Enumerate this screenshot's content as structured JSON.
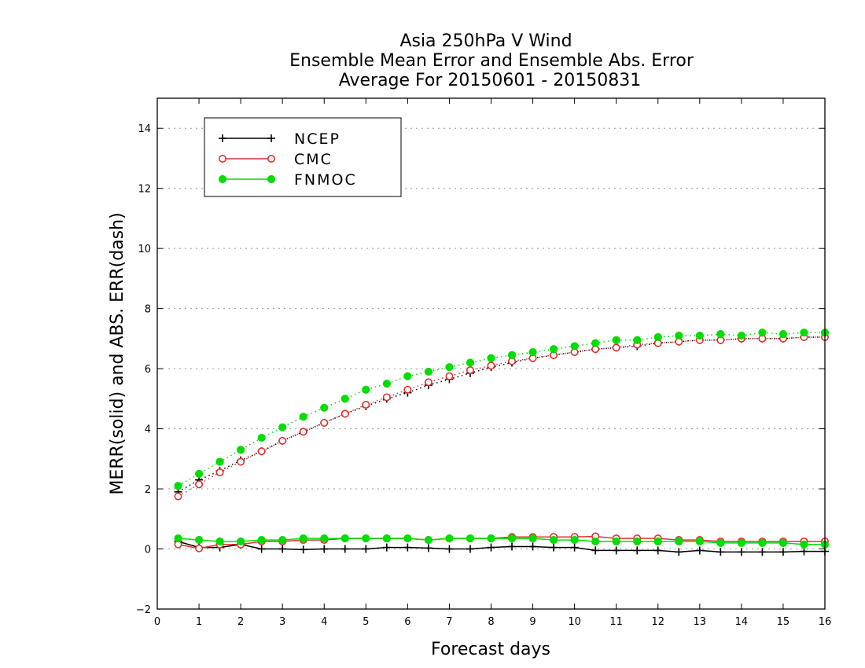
{
  "chart_data": {
    "type": "line",
    "title": [
      "Asia 250hPa V Wind",
      "Ensemble Mean Error and Ensemble Abs. Error",
      "Average For 20150601 - 20150831"
    ],
    "xlabel": "Forecast days",
    "ylabel": "MERR(solid) and ABS. ERR(dash)",
    "xlim": [
      0,
      16
    ],
    "ylim": [
      -2,
      15
    ],
    "xticks": [
      0,
      1,
      2,
      3,
      4,
      5,
      6,
      7,
      8,
      9,
      10,
      11,
      12,
      13,
      14,
      15,
      16
    ],
    "yticks": [
      -2,
      0,
      2,
      4,
      6,
      8,
      10,
      12,
      14
    ],
    "grid": "horizontal-dotted",
    "legend_position": "top-left",
    "x": [
      0.5,
      1,
      1.5,
      2,
      2.5,
      3,
      3.5,
      4,
      4.5,
      5,
      5.5,
      6,
      6.5,
      7,
      7.5,
      8,
      8.5,
      9,
      9.5,
      10,
      10.5,
      11,
      11.5,
      12,
      12.5,
      13,
      13.5,
      14,
      14.5,
      15,
      15.5,
      16
    ],
    "series": [
      {
        "name": "NCEP",
        "color": "#000000",
        "marker": "plus",
        "merr": [
          0.25,
          0.05,
          0.05,
          0.15,
          0.0,
          0.0,
          -0.02,
          0.0,
          0.0,
          0.0,
          0.05,
          0.05,
          0.03,
          0.0,
          0.0,
          0.05,
          0.08,
          0.08,
          0.05,
          0.05,
          -0.05,
          -0.05,
          -0.05,
          -0.05,
          -0.1,
          -0.05,
          -0.1,
          -0.1,
          -0.1,
          -0.1,
          -0.08,
          -0.08
        ],
        "abs_err": [
          1.9,
          2.3,
          2.6,
          2.95,
          3.25,
          3.6,
          3.9,
          4.2,
          4.5,
          4.75,
          5.0,
          5.2,
          5.45,
          5.65,
          5.85,
          6.05,
          6.2,
          6.35,
          6.45,
          6.55,
          6.65,
          6.7,
          6.75,
          6.85,
          6.9,
          6.95,
          6.95,
          7.0,
          7.0,
          7.0,
          7.05,
          7.05
        ]
      },
      {
        "name": "CMC",
        "color": "#e03030",
        "marker": "open-circle",
        "merr": [
          0.15,
          0.02,
          0.15,
          0.15,
          0.25,
          0.25,
          0.3,
          0.3,
          0.35,
          0.35,
          0.35,
          0.35,
          0.3,
          0.35,
          0.35,
          0.35,
          0.4,
          0.4,
          0.4,
          0.4,
          0.42,
          0.35,
          0.35,
          0.35,
          0.3,
          0.3,
          0.25,
          0.25,
          0.25,
          0.25,
          0.25,
          0.25
        ],
        "abs_err": [
          1.75,
          2.15,
          2.55,
          2.9,
          3.25,
          3.6,
          3.9,
          4.2,
          4.5,
          4.8,
          5.05,
          5.3,
          5.55,
          5.75,
          5.95,
          6.1,
          6.25,
          6.35,
          6.45,
          6.55,
          6.65,
          6.7,
          6.8,
          6.85,
          6.9,
          6.95,
          6.95,
          7.0,
          7.0,
          7.0,
          7.05,
          7.05
        ]
      },
      {
        "name": "FNMOC",
        "color": "#00dd00",
        "marker": "filled-circle",
        "merr": [
          0.35,
          0.3,
          0.25,
          0.25,
          0.3,
          0.3,
          0.35,
          0.35,
          0.35,
          0.35,
          0.35,
          0.35,
          0.3,
          0.35,
          0.35,
          0.35,
          0.35,
          0.35,
          0.3,
          0.3,
          0.25,
          0.25,
          0.25,
          0.25,
          0.25,
          0.25,
          0.2,
          0.2,
          0.2,
          0.2,
          0.15,
          0.15
        ],
        "abs_err": [
          2.1,
          2.5,
          2.9,
          3.3,
          3.7,
          4.05,
          4.4,
          4.7,
          5.0,
          5.3,
          5.5,
          5.75,
          5.9,
          6.05,
          6.2,
          6.35,
          6.45,
          6.55,
          6.65,
          6.75,
          6.85,
          6.95,
          6.95,
          7.05,
          7.1,
          7.1,
          7.15,
          7.1,
          7.2,
          7.15,
          7.2,
          7.2
        ]
      }
    ]
  }
}
